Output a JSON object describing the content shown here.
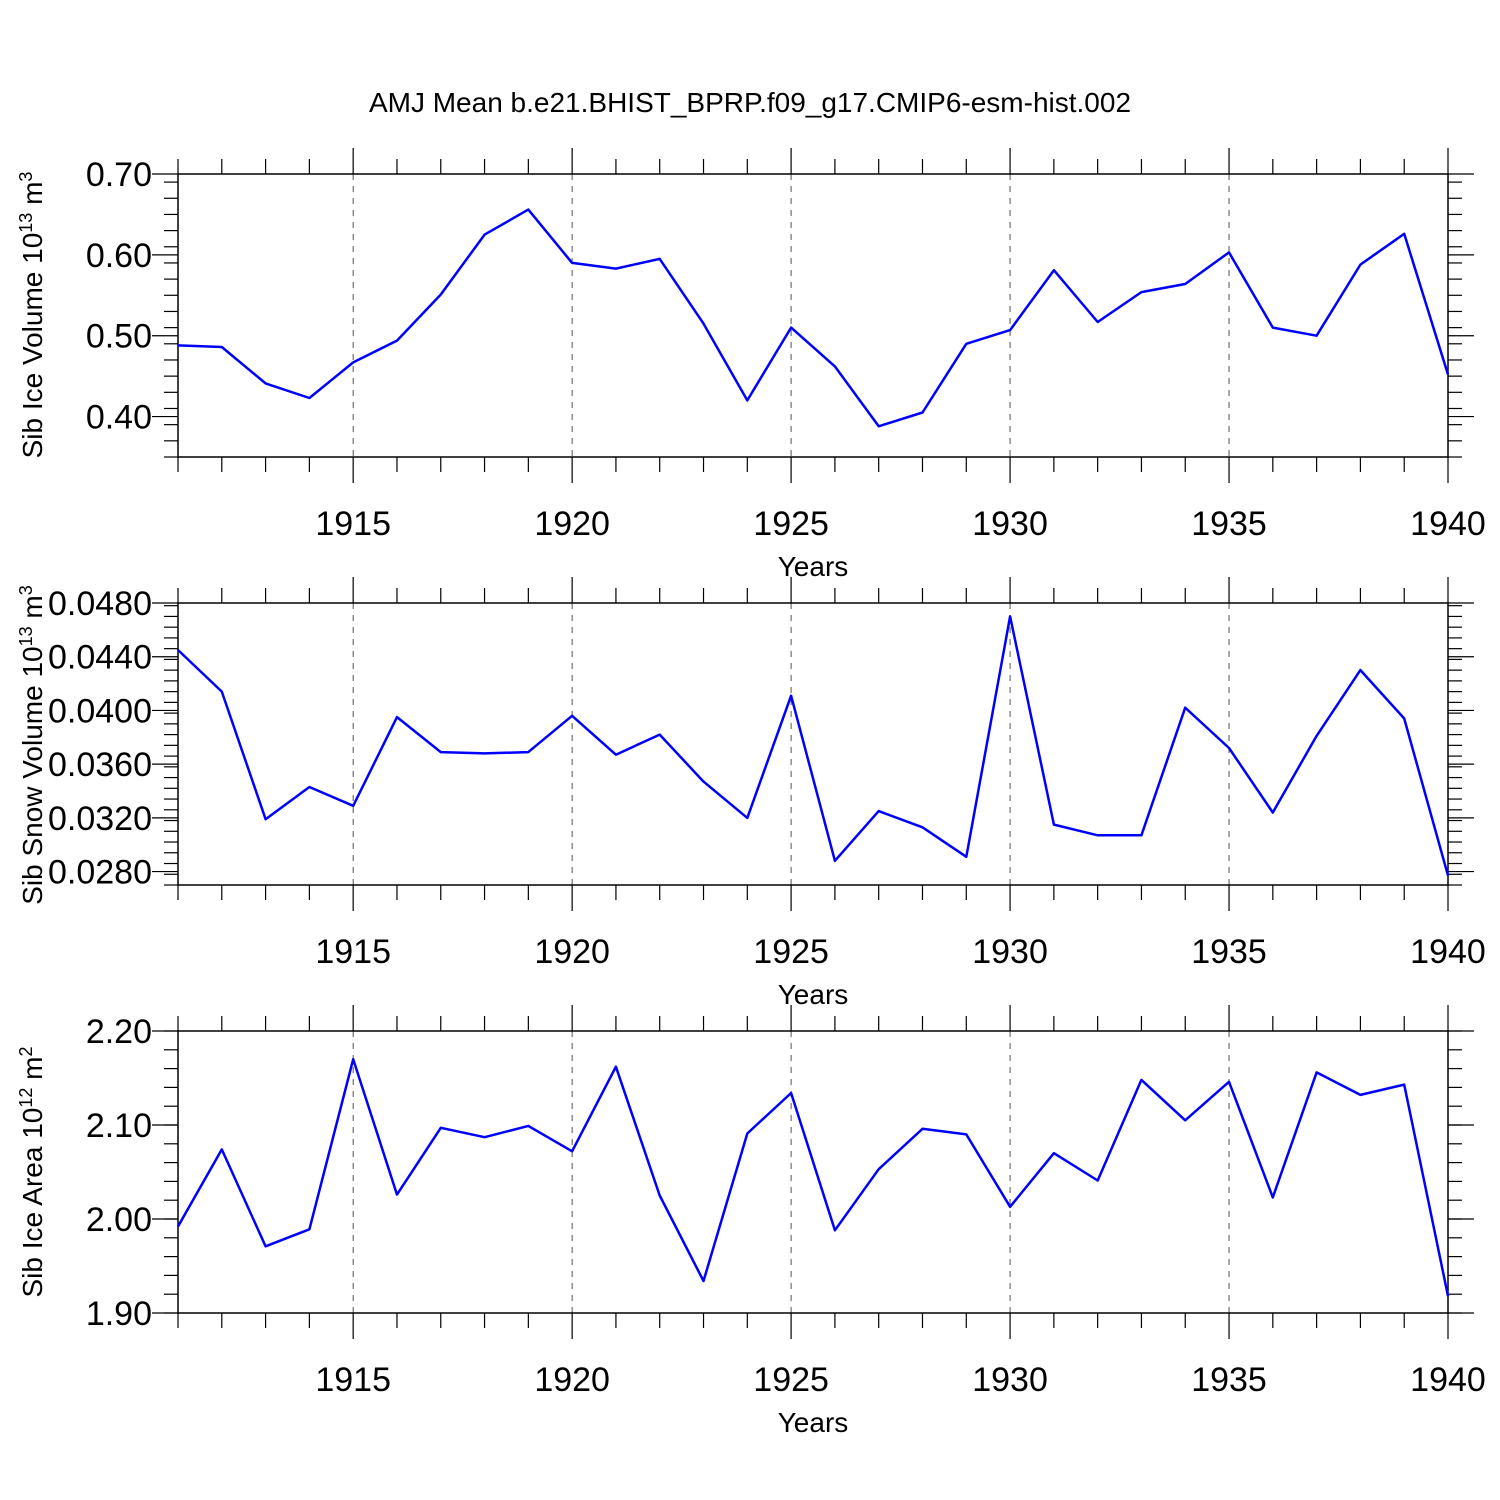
{
  "colors": {
    "line": "#0000ff",
    "axis": "#000000",
    "grid": "#555555"
  },
  "title": "AMJ Mean b.e21.BHIST_BPRP.f09_g17.CMIP6-esm-hist.002",
  "chart_data": [
    {
      "type": "line",
      "title": "AMJ Mean b.e21.BHIST_BPRP.f09_g17.CMIP6-esm-hist.002",
      "xlabel": "Years",
      "ylabel": "Sib Ice Volume 10",
      "ylabel_exp": "13",
      "ylabel_unit": " m",
      "ylabel_unit_exp": "3",
      "xlim": [
        1911,
        1940
      ],
      "ylim": [
        0.35,
        0.7
      ],
      "yticks": [
        0.4,
        0.5,
        0.6,
        0.7
      ],
      "ytick_labels": [
        "0.40",
        "0.50",
        "0.60",
        "0.70"
      ],
      "xticks": [
        1915,
        1920,
        1925,
        1930,
        1935,
        1940
      ],
      "xtick_labels": [
        "1915",
        "1920",
        "1925",
        "1930",
        "1935",
        "1940"
      ],
      "x": [
        1911,
        1912,
        1913,
        1914,
        1915,
        1916,
        1917,
        1918,
        1919,
        1920,
        1921,
        1922,
        1923,
        1924,
        1925,
        1926,
        1927,
        1928,
        1929,
        1930,
        1931,
        1932,
        1933,
        1934,
        1935,
        1936,
        1937,
        1938,
        1939,
        1940
      ],
      "series": [
        {
          "name": "Sib Ice Volume",
          "values": [
            0.488,
            0.486,
            0.441,
            0.423,
            0.467,
            0.494,
            0.551,
            0.625,
            0.656,
            0.59,
            0.583,
            0.595,
            0.515,
            0.42,
            0.51,
            0.462,
            0.388,
            0.405,
            0.49,
            0.507,
            0.581,
            0.517,
            0.554,
            0.564,
            0.603,
            0.51,
            0.5,
            0.588,
            0.626,
            0.452
          ]
        }
      ]
    },
    {
      "type": "line",
      "xlabel": "Years",
      "ylabel": "Sib Snow Volume 10",
      "ylabel_exp": "13",
      "ylabel_unit": " m",
      "ylabel_unit_exp": "3",
      "xlim": [
        1911,
        1940
      ],
      "ylim": [
        0.027,
        0.048
      ],
      "yticks": [
        0.028,
        0.032,
        0.036,
        0.04,
        0.044,
        0.048
      ],
      "ytick_labels": [
        "0.0280",
        "0.0320",
        "0.0360",
        "0.0400",
        "0.0440",
        "0.0480"
      ],
      "xticks": [
        1915,
        1920,
        1925,
        1930,
        1935,
        1940
      ],
      "xtick_labels": [
        "1915",
        "1920",
        "1925",
        "1930",
        "1935",
        "1940"
      ],
      "x": [
        1911,
        1912,
        1913,
        1914,
        1915,
        1916,
        1917,
        1918,
        1919,
        1920,
        1921,
        1922,
        1923,
        1924,
        1925,
        1926,
        1927,
        1928,
        1929,
        1930,
        1931,
        1932,
        1933,
        1934,
        1935,
        1936,
        1937,
        1938,
        1939,
        1940
      ],
      "series": [
        {
          "name": "Sib Snow Volume",
          "values": [
            0.0445,
            0.0414,
            0.0319,
            0.0343,
            0.0329,
            0.0395,
            0.0369,
            0.0368,
            0.0369,
            0.0396,
            0.0367,
            0.0382,
            0.0347,
            0.032,
            0.0411,
            0.0288,
            0.0325,
            0.0313,
            0.0291,
            0.047,
            0.0315,
            0.0307,
            0.0307,
            0.0402,
            0.0372,
            0.0324,
            0.0381,
            0.043,
            0.0394,
            0.0277
          ]
        }
      ]
    },
    {
      "type": "line",
      "xlabel": "Years",
      "ylabel": "Sib Ice Area 10",
      "ylabel_exp": "12",
      "ylabel_unit": " m",
      "ylabel_unit_exp": "2",
      "xlim": [
        1911,
        1940
      ],
      "ylim": [
        1.9,
        2.2
      ],
      "yticks": [
        1.9,
        2.0,
        2.1,
        2.2
      ],
      "ytick_labels": [
        "1.90",
        "2.00",
        "2.10",
        "2.20"
      ],
      "xticks": [
        1915,
        1920,
        1925,
        1930,
        1935,
        1940
      ],
      "xtick_labels": [
        "1915",
        "1920",
        "1925",
        "1930",
        "1935",
        "1940"
      ],
      "x": [
        1911,
        1912,
        1913,
        1914,
        1915,
        1916,
        1917,
        1918,
        1919,
        1920,
        1921,
        1922,
        1923,
        1924,
        1925,
        1926,
        1927,
        1928,
        1929,
        1930,
        1931,
        1932,
        1933,
        1934,
        1935,
        1936,
        1937,
        1938,
        1939,
        1940
      ],
      "series": [
        {
          "name": "Sib Ice Area",
          "values": [
            1.992,
            2.074,
            1.971,
            1.989,
            2.17,
            2.026,
            2.097,
            2.087,
            2.099,
            2.072,
            2.162,
            2.025,
            1.934,
            2.091,
            2.134,
            1.988,
            2.053,
            2.096,
            2.09,
            2.013,
            2.07,
            2.041,
            2.148,
            2.105,
            2.146,
            2.023,
            2.156,
            2.132,
            2.143,
            1.918
          ]
        }
      ]
    }
  ]
}
